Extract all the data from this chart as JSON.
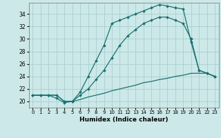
{
  "title": "",
  "xlabel": "Humidex (Indice chaleur)",
  "bg_color": "#cce8e8",
  "grid_color": "#aacece",
  "line_color": "#1a7070",
  "xlim": [
    -0.5,
    23.5
  ],
  "ylim": [
    19.0,
    35.8
  ],
  "yticks": [
    20,
    22,
    24,
    26,
    28,
    30,
    32,
    34
  ],
  "xticks": [
    0,
    1,
    2,
    3,
    4,
    5,
    6,
    7,
    8,
    9,
    10,
    11,
    12,
    13,
    14,
    15,
    16,
    17,
    18,
    19,
    20,
    21,
    22,
    23
  ],
  "line1_x": [
    0,
    1,
    2,
    3,
    4,
    5,
    6,
    7,
    8,
    9,
    10,
    11,
    12,
    13,
    14,
    15,
    16,
    17,
    18,
    19,
    20,
    21,
    22,
    23
  ],
  "line1_y": [
    21.0,
    21.0,
    21.0,
    20.5,
    19.8,
    20.0,
    21.5,
    24.0,
    26.5,
    29.0,
    32.5,
    33.0,
    33.5,
    34.0,
    34.5,
    35.0,
    35.5,
    35.3,
    35.0,
    34.8,
    29.5,
    25.0,
    24.5,
    24.0
  ],
  "line2_x": [
    0,
    1,
    2,
    3,
    4,
    5,
    6,
    7,
    8,
    9,
    10,
    11,
    12,
    13,
    14,
    15,
    16,
    17,
    18,
    19,
    20,
    21,
    22,
    23
  ],
  "line2_y": [
    21.0,
    21.0,
    21.0,
    21.0,
    20.0,
    20.0,
    21.0,
    22.0,
    23.5,
    25.0,
    27.0,
    29.0,
    30.5,
    31.5,
    32.5,
    33.0,
    33.5,
    33.5,
    33.0,
    32.5,
    30.0,
    25.0,
    24.5,
    24.0
  ],
  "line3_x": [
    0,
    1,
    2,
    3,
    4,
    5,
    6,
    7,
    8,
    9,
    10,
    11,
    12,
    13,
    14,
    15,
    16,
    17,
    18,
    19,
    20,
    21,
    22,
    23
  ],
  "line3_y": [
    21.0,
    21.0,
    21.0,
    21.0,
    20.0,
    20.0,
    20.3,
    20.7,
    21.0,
    21.3,
    21.7,
    22.0,
    22.3,
    22.6,
    23.0,
    23.2,
    23.5,
    23.7,
    24.0,
    24.2,
    24.5,
    24.5,
    24.5,
    24.0
  ]
}
